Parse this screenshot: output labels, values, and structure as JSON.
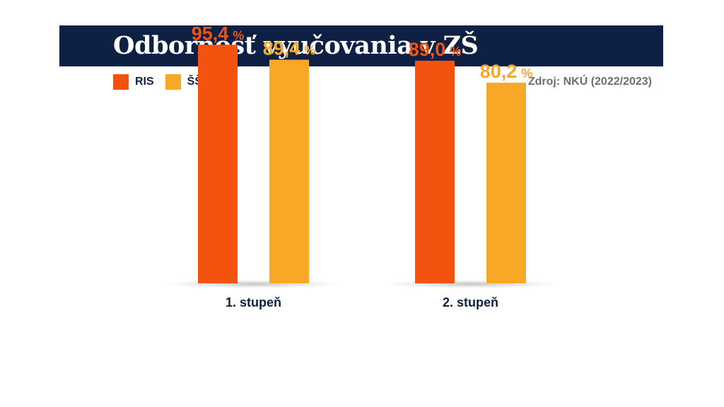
{
  "title": "Odbornosť vyučovania v ZŠ",
  "source": "Zdroj: NKÚ (2022/2023)",
  "legend": [
    {
      "label": "RIS",
      "color": "#f4520f"
    },
    {
      "label": "ŠŠI",
      "color": "#f6a826"
    }
  ],
  "chart_data": {
    "type": "bar",
    "categories": [
      "1. stupeň",
      "2. stupeň"
    ],
    "series": [
      {
        "name": "RIS",
        "values": [
          95.4,
          89.0
        ],
        "labels": [
          "95,4",
          "89,0"
        ],
        "color": "#f4520f"
      },
      {
        "name": "ŠŠI",
        "values": [
          89.4,
          80.2
        ],
        "labels": [
          "89,4",
          "80,2"
        ],
        "color": "#f6a826"
      }
    ],
    "unit": "%",
    "ylim": [
      0,
      100
    ],
    "grid": false,
    "legend_position": "top-left"
  }
}
